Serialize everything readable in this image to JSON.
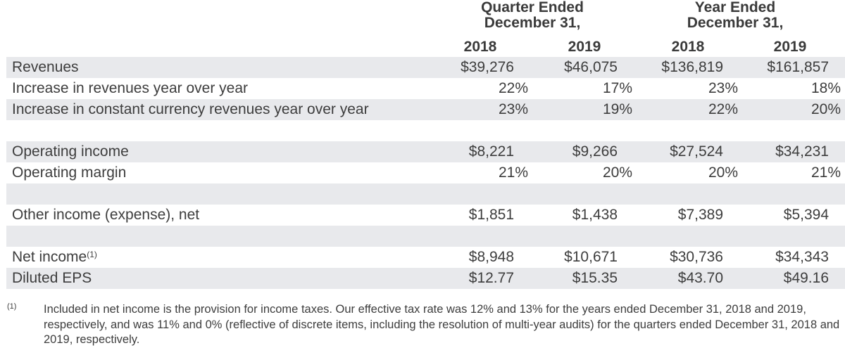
{
  "header": {
    "quarter": [
      "Quarter Ended",
      "December 31,"
    ],
    "year": [
      "Year Ended",
      "December 31,"
    ],
    "years": [
      "2018",
      "2019",
      "2018",
      "2019"
    ]
  },
  "rows": [
    {
      "label": "Revenues",
      "values": [
        "$39,276",
        "$46,075",
        "$136,819",
        "$161,857"
      ],
      "kind": "dollar"
    },
    {
      "label": "Increase in revenues year over year",
      "values": [
        "22%",
        "17%",
        "23%",
        "18%"
      ],
      "kind": "pct"
    },
    {
      "label": "Increase in constant currency revenues year over year",
      "values": [
        "23%",
        "19%",
        "22%",
        "20%"
      ],
      "kind": "pct"
    },
    {
      "label": "",
      "values": [],
      "kind": "blank"
    },
    {
      "label": "Operating income",
      "values": [
        "$8,221",
        "$9,266",
        "$27,524",
        "$34,231"
      ],
      "kind": "dollar"
    },
    {
      "label": "Operating margin",
      "values": [
        "21%",
        "20%",
        "20%",
        "21%"
      ],
      "kind": "pct"
    },
    {
      "label": "",
      "values": [],
      "kind": "blank"
    },
    {
      "label": "Other income (expense), net",
      "values": [
        "$1,851",
        "$1,438",
        "$7,389",
        "$5,394"
      ],
      "kind": "dollar"
    },
    {
      "label": "",
      "values": [],
      "kind": "blank"
    },
    {
      "label": "Net income",
      "sup": "(1)",
      "values": [
        "$8,948",
        "$10,671",
        "$30,736",
        "$34,343"
      ],
      "kind": "dollar"
    },
    {
      "label": "Diluted EPS",
      "values": [
        "$12.77",
        "$15.35",
        "$43.70",
        "$49.16"
      ],
      "kind": "dollar"
    }
  ],
  "footnote": {
    "mark": "(1)",
    "text": "Included in net income is the provision for income taxes. Our effective tax rate was 12% and 13% for the years ended December 31, 2018 and 2019, respectively, and was 11% and 0% (reflective of discrete items, including the resolution of multi-year audits) for the quarters ended December 31, 2018 and 2019, respectively."
  },
  "colors": {
    "band": "#e8e9ec",
    "text": "#3d3d3d"
  }
}
